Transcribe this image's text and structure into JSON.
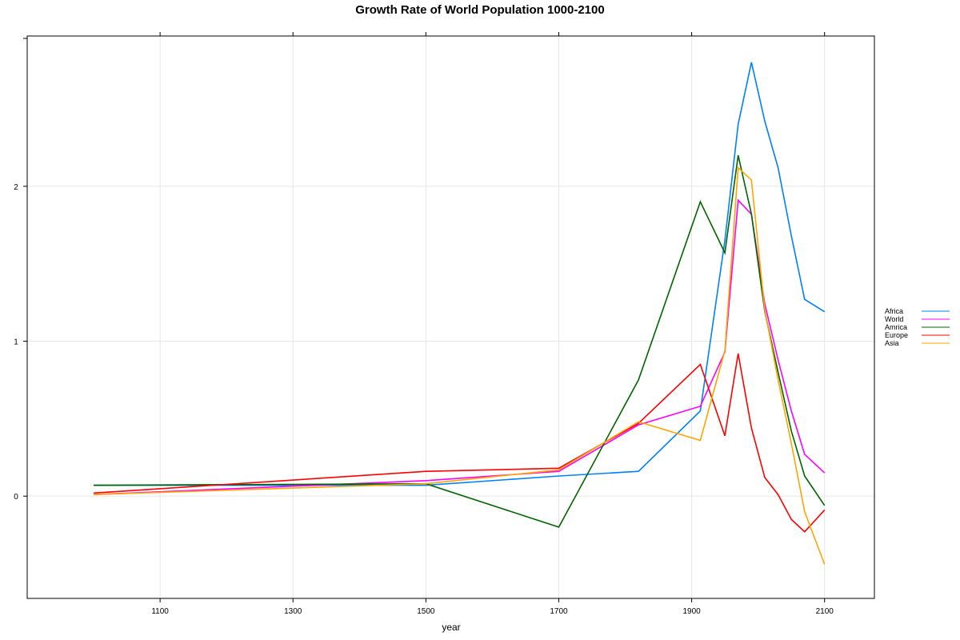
{
  "chart_data": {
    "type": "line",
    "title": "Growth Rate of World Population 1000-2100",
    "xlabel": "year",
    "ylabel": "",
    "xlim": [
      900,
      2175
    ],
    "ylim": [
      -0.66,
      2.97
    ],
    "x_ticks": [
      1100,
      1300,
      1500,
      1700,
      1900,
      2100
    ],
    "y_ticks": [
      0,
      1,
      2
    ],
    "grid": true,
    "legend_position": "right",
    "series": [
      {
        "name": "Africa",
        "color": "#0080ff",
        "points": [
          [
            1000,
            0.07
          ],
          [
            1500,
            0.07
          ],
          [
            1700,
            0.13
          ],
          [
            1820,
            0.16
          ],
          [
            1913,
            0.55
          ],
          [
            1950,
            1.65
          ],
          [
            1970,
            2.4
          ],
          [
            1990,
            2.8
          ],
          [
            2010,
            2.42
          ],
          [
            2030,
            2.12
          ],
          [
            2050,
            1.68
          ],
          [
            2070,
            1.27
          ],
          [
            2100,
            1.19
          ]
        ]
      },
      {
        "name": "World",
        "color": "#ff00ff",
        "points": [
          [
            1000,
            0.01
          ],
          [
            1500,
            0.1
          ],
          [
            1700,
            0.16
          ],
          [
            1820,
            0.46
          ],
          [
            1913,
            0.58
          ],
          [
            1950,
            0.93
          ],
          [
            1970,
            1.91
          ],
          [
            1990,
            1.82
          ],
          [
            2010,
            1.24
          ],
          [
            2030,
            0.88
          ],
          [
            2050,
            0.55
          ],
          [
            2070,
            0.27
          ],
          [
            2100,
            0.15
          ]
        ]
      },
      {
        "name": "Amrica",
        "color": "#006400",
        "points": [
          [
            1000,
            0.07
          ],
          [
            1500,
            0.08
          ],
          [
            1700,
            -0.2
          ],
          [
            1820,
            0.75
          ],
          [
            1913,
            1.9
          ],
          [
            1950,
            1.57
          ],
          [
            1970,
            2.2
          ],
          [
            1990,
            1.82
          ],
          [
            2010,
            1.19
          ],
          [
            2030,
            0.8
          ],
          [
            2050,
            0.42
          ],
          [
            2070,
            0.13
          ],
          [
            2100,
            -0.06
          ]
        ]
      },
      {
        "name": "Europe",
        "color": "#ff0000",
        "points": [
          [
            1000,
            0.02
          ],
          [
            1500,
            0.16
          ],
          [
            1700,
            0.18
          ],
          [
            1820,
            0.47
          ],
          [
            1913,
            0.85
          ],
          [
            1950,
            0.39
          ],
          [
            1970,
            0.92
          ],
          [
            1990,
            0.44
          ],
          [
            2010,
            0.12
          ],
          [
            2030,
            0.01
          ],
          [
            2050,
            -0.15
          ],
          [
            2070,
            -0.23
          ],
          [
            2100,
            -0.09
          ]
        ]
      },
      {
        "name": "Asia",
        "color": "#ffa500",
        "points": [
          [
            1000,
            0.01
          ],
          [
            1500,
            0.08
          ],
          [
            1700,
            0.17
          ],
          [
            1820,
            0.48
          ],
          [
            1913,
            0.36
          ],
          [
            1950,
            0.94
          ],
          [
            1970,
            2.12
          ],
          [
            1990,
            2.04
          ],
          [
            2010,
            1.2
          ],
          [
            2030,
            0.75
          ],
          [
            2050,
            0.34
          ],
          [
            2070,
            -0.1
          ],
          [
            2100,
            -0.44
          ]
        ]
      }
    ]
  }
}
